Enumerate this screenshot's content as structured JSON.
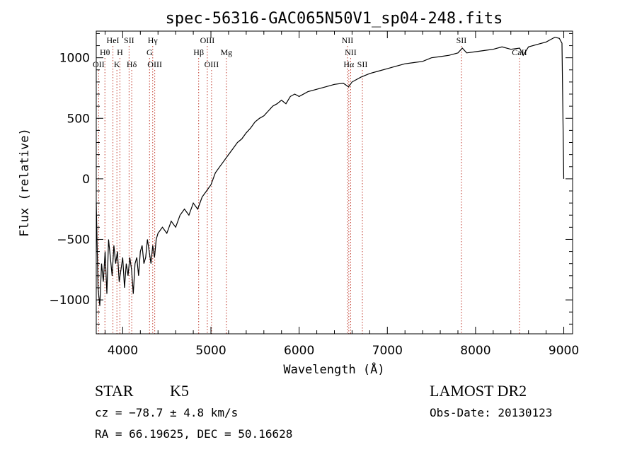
{
  "chart_data": {
    "type": "line",
    "title": "spec-56316-GAC065N50V1_sp04-248.fits",
    "xlabel": "Wavelength (Å)",
    "ylabel": "Flux (relative)",
    "xlim": [
      3700,
      9100
    ],
    "ylim": [
      -1280,
      1220
    ],
    "x_ticks": [
      4000,
      5000,
      6000,
      7000,
      8000,
      9000
    ],
    "y_ticks": [
      -1000,
      -500,
      0,
      500,
      1000
    ],
    "grid": false,
    "series": [
      {
        "x": [
          3700,
          3720,
          3740,
          3760,
          3780,
          3800,
          3820,
          3840,
          3860,
          3880,
          3900,
          3920,
          3940,
          3960,
          3980,
          4000,
          4020,
          4040,
          4060,
          4080,
          4100,
          4120,
          4140,
          4160,
          4180,
          4200,
          4220,
          4240,
          4260,
          4280,
          4300,
          4320,
          4340,
          4360,
          4380,
          4400,
          4450,
          4500,
          4550,
          4600,
          4650,
          4700,
          4750,
          4800,
          4850,
          4900,
          4950,
          5000,
          5050,
          5100,
          5150,
          5200,
          5250,
          5300,
          5350,
          5400,
          5450,
          5500,
          5550,
          5600,
          5650,
          5700,
          5750,
          5800,
          5850,
          5900,
          5950,
          6000,
          6100,
          6200,
          6300,
          6400,
          6500,
          6560,
          6600,
          6700,
          6800,
          6900,
          7000,
          7100,
          7200,
          7300,
          7400,
          7500,
          7600,
          7700,
          7800,
          7850,
          7900,
          8000,
          8100,
          8200,
          8300,
          8400,
          8500,
          8540,
          8600,
          8700,
          8800,
          8850,
          8900,
          8950,
          8980,
          9000
        ],
        "y": [
          -200,
          -900,
          -1050,
          -700,
          -850,
          -600,
          -950,
          -500,
          -650,
          -800,
          -550,
          -700,
          -600,
          -850,
          -750,
          -650,
          -900,
          -700,
          -800,
          -650,
          -750,
          -950,
          -700,
          -650,
          -800,
          -600,
          -550,
          -700,
          -650,
          -500,
          -600,
          -700,
          -550,
          -650,
          -500,
          -450,
          -400,
          -450,
          -350,
          -400,
          -300,
          -250,
          -300,
          -200,
          -250,
          -150,
          -100,
          -50,
          50,
          100,
          150,
          200,
          250,
          300,
          330,
          380,
          420,
          470,
          500,
          520,
          560,
          600,
          620,
          650,
          620,
          680,
          700,
          680,
          720,
          740,
          760,
          780,
          790,
          760,
          800,
          840,
          870,
          890,
          910,
          930,
          950,
          960,
          970,
          1000,
          1010,
          1020,
          1040,
          1080,
          1040,
          1050,
          1060,
          1070,
          1090,
          1070,
          1080,
          1020,
          1090,
          1110,
          1130,
          1150,
          1170,
          1160,
          1120,
          0
        ]
      }
    ],
    "line_markers": [
      {
        "label": "OII",
        "wavelength": 3727,
        "row": 3
      },
      {
        "label": "Hθ",
        "wavelength": 3798,
        "row": 2
      },
      {
        "label": "HeI",
        "wavelength": 3889,
        "row": 1
      },
      {
        "label": "K",
        "wavelength": 3934,
        "row": 3
      },
      {
        "label": "H",
        "wavelength": 3968,
        "row": 2
      },
      {
        "label": "SII",
        "wavelength": 4072,
        "row": 1
      },
      {
        "label": "Hδ",
        "wavelength": 4102,
        "row": 3
      },
      {
        "label": "Hγ",
        "wavelength": 4340,
        "row": 1
      },
      {
        "label": "G",
        "wavelength": 4304,
        "row": 2
      },
      {
        "label": "OIII",
        "wavelength": 4363,
        "row": 3
      },
      {
        "label": "Hβ",
        "wavelength": 4861,
        "row": 2
      },
      {
        "label": "OIII",
        "wavelength": 4959,
        "row": 1
      },
      {
        "label": "OIII",
        "wavelength": 5007,
        "row": 3
      },
      {
        "label": "Mg",
        "wavelength": 5175,
        "row": 2
      },
      {
        "label": "NII",
        "wavelength": 6548,
        "row": 1
      },
      {
        "label": "NII",
        "wavelength": 6584,
        "row": 2
      },
      {
        "label": "Hα",
        "wavelength": 6563,
        "row": 3
      },
      {
        "label": "SII",
        "wavelength": 6717,
        "row": 3
      },
      {
        "label": "SII",
        "wavelength": 7840,
        "row": 1
      },
      {
        "label": "CaII",
        "wavelength": 8498,
        "row": 2
      }
    ]
  },
  "info": {
    "class": "STAR",
    "subclass": "K5",
    "survey": "LAMOST DR2",
    "cz": "cz = −78.7 ± 4.8 km/s",
    "obs_date": "Obs-Date: 20130123",
    "coords": "RA =  66.19625, DEC =  50.16628"
  },
  "colors": {
    "line": "#000000",
    "marker": "#c0392b",
    "axes": "#000000"
  }
}
